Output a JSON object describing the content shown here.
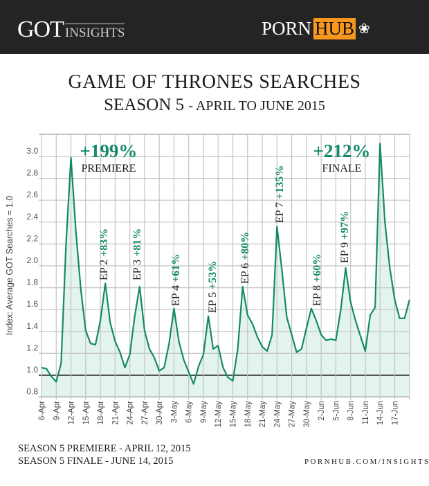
{
  "header": {
    "got_logo": "GOT",
    "got_insights": "INSIGHTS",
    "ph_logo_porn": "PORN",
    "ph_logo_hub": "HUB"
  },
  "title": {
    "line1": "GAME OF THRONES SEARCHES",
    "line2_main": "SEASON 5",
    "line2_sub": "- APRIL TO JUNE 2015"
  },
  "footer": {
    "premiere": "SEASON 5 PREMIERE  -  APRIL 12, 2015",
    "finale": "SEASON 5 FINALE  -  JUNE 14, 2015",
    "url": "PORNHUB.COM/INSIGHTS"
  },
  "colors": {
    "line": "#14896a",
    "fill": "#e3f3ee",
    "grid": "#c4c4c4",
    "baseline": "#555555",
    "accent_text": "#14896a",
    "header_bg": "#242424",
    "hub_orange": "#f7971d"
  },
  "chart_data": {
    "type": "area",
    "ylabel": "Index: Average GOT Searches = 1.0",
    "xlabel": "",
    "ylim": [
      0.8,
      3.2
    ],
    "yticks": [
      "0.8",
      "1.0",
      "1.2",
      "1.4",
      "1.6",
      "1.8",
      "2.0",
      "2.2",
      "2.4",
      "2.6",
      "2.8",
      "3.0"
    ],
    "baseline": 1.0,
    "grid": true,
    "x_start": "2015-04-06",
    "x_end": "2015-06-20",
    "xtick_labels": [
      "6-Apr",
      "9-Apr",
      "12-Apr",
      "15-Apr",
      "18-Apr",
      "21-Apr",
      "24-Apr",
      "27-Apr",
      "30-Apr",
      "3-May",
      "6-May",
      "9-May",
      "12-May",
      "15-May",
      "18-May",
      "21-May",
      "24-May",
      "27-May",
      "30-May",
      "2-Jun",
      "5-Jun",
      "8-Jun",
      "11-Jun",
      "14-Jun",
      "17-Jun"
    ],
    "values": [
      1.07,
      1.06,
      0.99,
      0.94,
      1.11,
      2.2,
      2.99,
      2.32,
      1.79,
      1.41,
      1.29,
      1.28,
      1.5,
      1.84,
      1.48,
      1.31,
      1.21,
      1.07,
      1.19,
      1.54,
      1.81,
      1.41,
      1.24,
      1.16,
      1.04,
      1.07,
      1.29,
      1.61,
      1.31,
      1.14,
      1.03,
      0.92,
      1.08,
      1.19,
      1.54,
      1.24,
      1.27,
      1.07,
      0.98,
      0.95,
      1.24,
      1.81,
      1.55,
      1.47,
      1.35,
      1.26,
      1.22,
      1.37,
      2.36,
      1.96,
      1.53,
      1.37,
      1.21,
      1.24,
      1.43,
      1.61,
      1.5,
      1.37,
      1.32,
      1.33,
      1.32,
      1.6,
      1.98,
      1.67,
      1.5,
      1.36,
      1.22,
      1.55,
      1.62,
      3.12,
      2.4,
      1.98,
      1.69,
      1.52,
      1.52,
      1.69
    ],
    "annotations": [
      {
        "date": "12-Apr",
        "label": "PREMIERE",
        "pct": "+199%"
      },
      {
        "date": "19-Apr",
        "label": "EP 2",
        "pct": "+83%"
      },
      {
        "date": "26-Apr",
        "label": "EP 3",
        "pct": "+81%"
      },
      {
        "date": "3-May",
        "label": "EP 4",
        "pct": "+61%"
      },
      {
        "date": "10-May",
        "label": "EP 5",
        "pct": "+53%"
      },
      {
        "date": "17-May",
        "label": "EP 6",
        "pct": "+80%"
      },
      {
        "date": "24-May",
        "label": "EP 7",
        "pct": "+135%"
      },
      {
        "date": "31-May",
        "label": "EP 8",
        "pct": "+60%"
      },
      {
        "date": "7-Jun",
        "label": "EP 9",
        "pct": "+97%"
      },
      {
        "date": "14-Jun",
        "label": "FINALE",
        "pct": "+212%"
      }
    ]
  }
}
